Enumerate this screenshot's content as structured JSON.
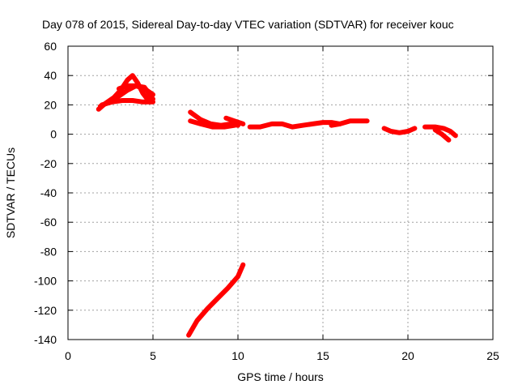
{
  "chart_data": {
    "type": "line",
    "title": "Day 078 of 2015, Sidereal Day-to-day VTEC variation (SDTVAR) for receiver kouc",
    "xlabel": "GPS time / hours",
    "ylabel": "SDTVAR / TECUs",
    "xlim": [
      0,
      25
    ],
    "ylim": [
      -140,
      60
    ],
    "xticks": [
      0,
      5,
      10,
      15,
      20,
      25
    ],
    "yticks": [
      -140,
      -120,
      -100,
      -80,
      -60,
      -40,
      -20,
      0,
      20,
      40,
      60
    ],
    "grid": true,
    "color": "#ff0000",
    "series": [
      {
        "name": "arc-1",
        "x": [
          1.8,
          2.2,
          2.7,
          3.1,
          3.5,
          3.8,
          4.1,
          4.4,
          4.8
        ],
        "y": [
          17,
          21,
          25,
          30,
          37,
          40,
          35,
          28,
          22
        ]
      },
      {
        "name": "arc-2",
        "x": [
          1.9,
          2.4,
          3.0,
          3.5,
          4.0,
          4.5,
          5.0
        ],
        "y": [
          19,
          22,
          26,
          30,
          33,
          32,
          24
        ]
      },
      {
        "name": "arc-3",
        "x": [
          2.0,
          2.6,
          3.2,
          3.8,
          4.4,
          5.0
        ],
        "y": [
          20,
          22,
          23,
          23,
          22,
          22
        ]
      },
      {
        "name": "arc-4",
        "x": [
          3.0,
          3.5,
          4.0,
          4.5,
          5.0
        ],
        "y": [
          31,
          33,
          33,
          31,
          27
        ]
      },
      {
        "name": "arc-5",
        "x": [
          7.2,
          7.8,
          8.4,
          9.0,
          9.6,
          10.0
        ],
        "y": [
          15,
          10,
          7,
          6,
          7,
          6
        ]
      },
      {
        "name": "arc-6",
        "x": [
          7.2,
          7.8,
          8.5,
          9.2,
          9.8
        ],
        "y": [
          9,
          7,
          5,
          5,
          6
        ]
      },
      {
        "name": "arc-7",
        "x": [
          9.3,
          9.8,
          10.3
        ],
        "y": [
          11,
          9,
          7
        ]
      },
      {
        "name": "arc-8",
        "x": [
          10.7,
          11.3,
          12.0,
          12.6,
          13.2,
          13.8,
          14.4,
          15.0,
          15.5,
          16.0
        ],
        "y": [
          5,
          5,
          7,
          7,
          5,
          6,
          7,
          8,
          8,
          7
        ]
      },
      {
        "name": "arc-9",
        "x": [
          15.5,
          16.0,
          16.6,
          17.2,
          17.6
        ],
        "y": [
          6,
          7,
          9,
          9,
          9
        ]
      },
      {
        "name": "arc-10",
        "x": [
          18.6,
          19.0,
          19.5,
          20.0,
          20.4
        ],
        "y": [
          4,
          2,
          1,
          2,
          4
        ]
      },
      {
        "name": "arc-11",
        "x": [
          21.0,
          21.6,
          22.1,
          22.5,
          22.8
        ],
        "y": [
          5,
          5,
          4,
          2,
          -1
        ]
      },
      {
        "name": "arc-12",
        "x": [
          21.6,
          22.0,
          22.4
        ],
        "y": [
          3,
          0,
          -4
        ]
      },
      {
        "name": "arc-13",
        "x": [
          7.1,
          7.6,
          8.2,
          8.8,
          9.4,
          10.0,
          10.3
        ],
        "y": [
          -137,
          -127,
          -119,
          -112,
          -105,
          -97,
          -89
        ]
      }
    ]
  }
}
